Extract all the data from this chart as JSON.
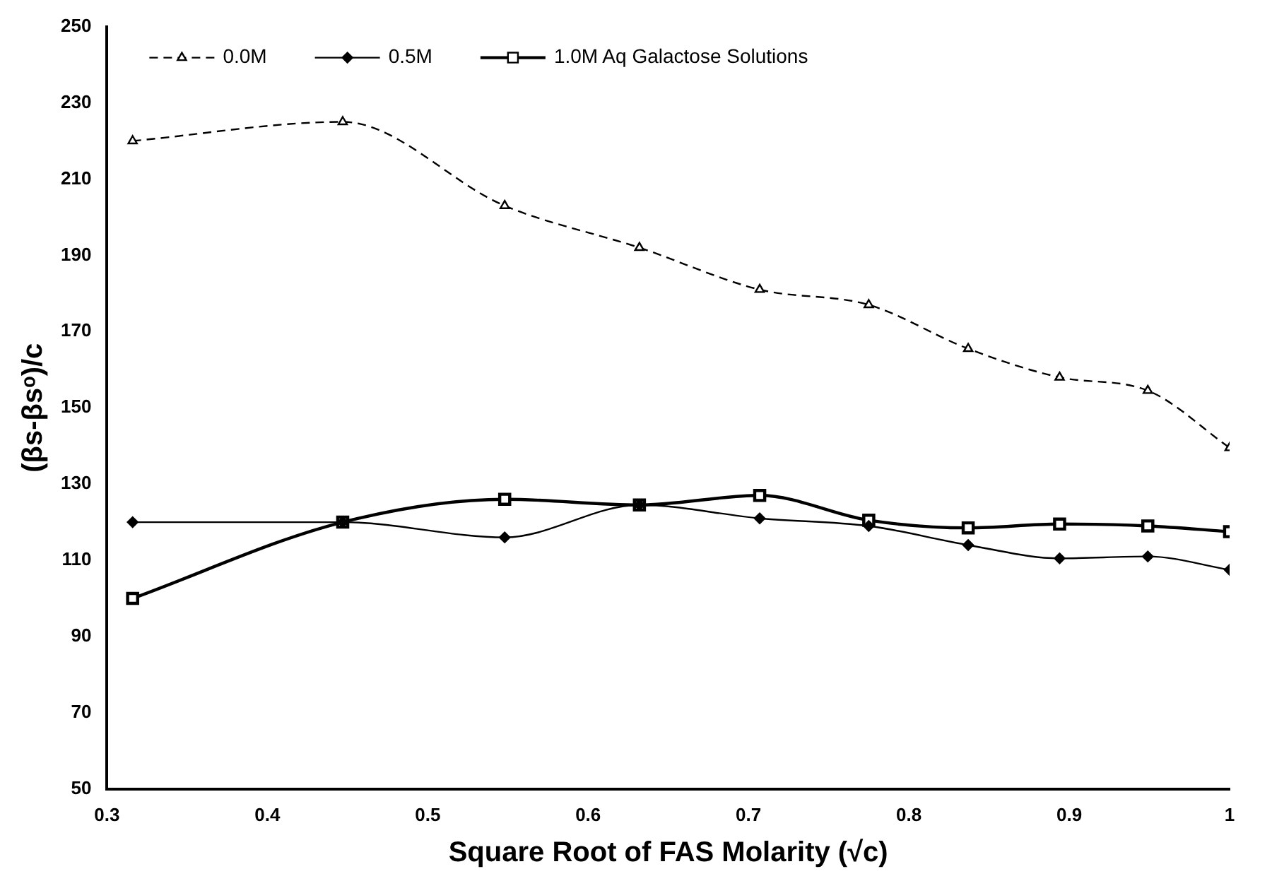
{
  "chart_data": {
    "type": "line",
    "xlabel": "Square Root of FAS Molarity (√c)",
    "ylabel": "(βs-βsᵒ)/c",
    "x": [
      0.316,
      0.447,
      0.548,
      0.632,
      0.707,
      0.775,
      0.837,
      0.894,
      0.949,
      1
    ],
    "series": [
      {
        "name": "0.0M",
        "color": "#000000",
        "line_style": "dashed",
        "marker": "triangle",
        "values": [
          220,
          225,
          203,
          192,
          181,
          177,
          165.5,
          158,
          154.5,
          139.5
        ]
      },
      {
        "name": "0.5M",
        "color": "#000000",
        "line_style": "solid",
        "marker": "diamond",
        "values": [
          120,
          120,
          116,
          124.5,
          121,
          119,
          114,
          110.5,
          111,
          107.5
        ]
      },
      {
        "name": "1.0M Aq Galactose Solutions",
        "color": "#000000",
        "line_style": "solid",
        "marker": "square",
        "values": [
          100,
          120,
          126,
          124.5,
          127,
          120.5,
          118.5,
          119.5,
          119,
          117.5
        ]
      }
    ],
    "xlim": [
      0.3,
      1
    ],
    "xticks": [
      0.3,
      0.4,
      0.5,
      0.6,
      0.7,
      0.8,
      0.9,
      1
    ],
    "ylim": [
      50,
      250
    ],
    "yticks": [
      50,
      70,
      90,
      110,
      130,
      150,
      170,
      190,
      210,
      230,
      250
    ],
    "grid": false,
    "legend": "top left"
  }
}
